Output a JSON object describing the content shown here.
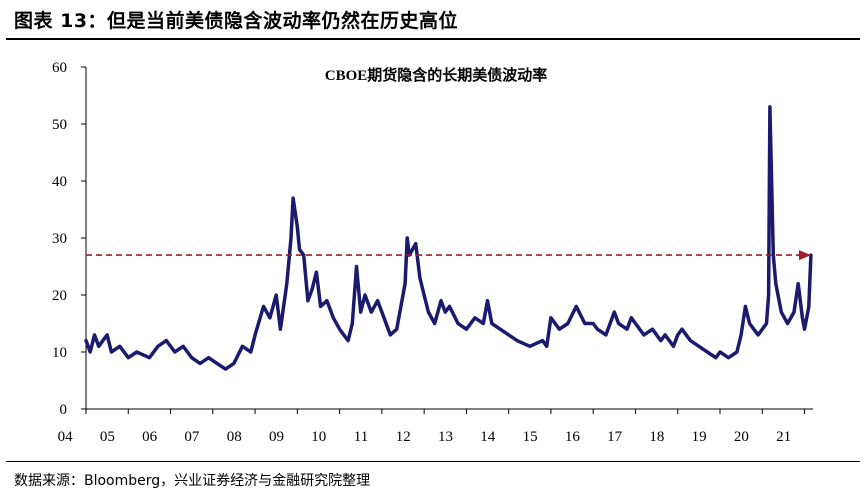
{
  "figure": {
    "title": "图表  13：但是当前美债隐含波动率仍然在历史高位",
    "source": "数据来源：Bloomberg，兴业证券经济与金融研究院整理"
  },
  "colors": {
    "series": "#1a1a6e",
    "reference": "#a01c2c",
    "axis": "#000000"
  },
  "chart_data": {
    "type": "line",
    "title": "CBOE期货隐含的长期美债波动率",
    "xlabel": "",
    "ylabel": "",
    "x_ticks": [
      "04",
      "05",
      "06",
      "07",
      "08",
      "09",
      "10",
      "11",
      "12",
      "13",
      "14",
      "15",
      "16",
      "17",
      "18",
      "19",
      "20",
      "21"
    ],
    "y_ticks": [
      0,
      10,
      20,
      30,
      40,
      50,
      60
    ],
    "xlim": [
      2004.0,
      2021.2
    ],
    "ylim": [
      0,
      60
    ],
    "grid": false,
    "legend": "none",
    "reference_line": {
      "y": 27,
      "style": "dashed",
      "arrow": "right"
    },
    "series": [
      {
        "values": [
          [
            2004.0,
            12
          ],
          [
            2004.1,
            10
          ],
          [
            2004.2,
            13
          ],
          [
            2004.3,
            11
          ],
          [
            2004.4,
            12
          ],
          [
            2004.5,
            13
          ],
          [
            2004.6,
            10
          ],
          [
            2004.8,
            11
          ],
          [
            2005.0,
            9
          ],
          [
            2005.2,
            10
          ],
          [
            2005.5,
            9
          ],
          [
            2005.7,
            11
          ],
          [
            2005.9,
            12
          ],
          [
            2006.1,
            10
          ],
          [
            2006.3,
            11
          ],
          [
            2006.5,
            9
          ],
          [
            2006.7,
            8
          ],
          [
            2006.9,
            9
          ],
          [
            2007.1,
            8
          ],
          [
            2007.3,
            7
          ],
          [
            2007.5,
            8
          ],
          [
            2007.7,
            11
          ],
          [
            2007.9,
            10
          ],
          [
            2008.0,
            13
          ],
          [
            2008.2,
            18
          ],
          [
            2008.35,
            16
          ],
          [
            2008.5,
            20
          ],
          [
            2008.6,
            14
          ],
          [
            2008.75,
            22
          ],
          [
            2008.85,
            30
          ],
          [
            2008.9,
            37
          ],
          [
            2009.0,
            32
          ],
          [
            2009.05,
            28
          ],
          [
            2009.15,
            27
          ],
          [
            2009.25,
            19
          ],
          [
            2009.35,
            21
          ],
          [
            2009.45,
            24
          ],
          [
            2009.55,
            18
          ],
          [
            2009.7,
            19
          ],
          [
            2009.85,
            16
          ],
          [
            2010.0,
            14
          ],
          [
            2010.1,
            13
          ],
          [
            2010.2,
            12
          ],
          [
            2010.3,
            15
          ],
          [
            2010.4,
            25
          ],
          [
            2010.5,
            17
          ],
          [
            2010.6,
            20
          ],
          [
            2010.75,
            17
          ],
          [
            2010.9,
            19
          ],
          [
            2011.0,
            17
          ],
          [
            2011.2,
            13
          ],
          [
            2011.35,
            14
          ],
          [
            2011.45,
            18
          ],
          [
            2011.55,
            22
          ],
          [
            2011.6,
            30
          ],
          [
            2011.65,
            27
          ],
          [
            2011.8,
            29
          ],
          [
            2011.9,
            23
          ],
          [
            2012.0,
            20
          ],
          [
            2012.1,
            17
          ],
          [
            2012.25,
            15
          ],
          [
            2012.4,
            19
          ],
          [
            2012.5,
            17
          ],
          [
            2012.6,
            18
          ],
          [
            2012.8,
            15
          ],
          [
            2013.0,
            14
          ],
          [
            2013.2,
            16
          ],
          [
            2013.4,
            15
          ],
          [
            2013.5,
            19
          ],
          [
            2013.6,
            15
          ],
          [
            2013.8,
            14
          ],
          [
            2014.0,
            13
          ],
          [
            2014.2,
            12
          ],
          [
            2014.5,
            11
          ],
          [
            2014.8,
            12
          ],
          [
            2014.9,
            11
          ],
          [
            2015.0,
            16
          ],
          [
            2015.2,
            14
          ],
          [
            2015.4,
            15
          ],
          [
            2015.6,
            18
          ],
          [
            2015.8,
            15
          ],
          [
            2016.0,
            15
          ],
          [
            2016.1,
            14
          ],
          [
            2016.3,
            13
          ],
          [
            2016.5,
            17
          ],
          [
            2016.6,
            15
          ],
          [
            2016.8,
            14
          ],
          [
            2016.9,
            16
          ],
          [
            2017.0,
            15
          ],
          [
            2017.2,
            13
          ],
          [
            2017.4,
            14
          ],
          [
            2017.6,
            12
          ],
          [
            2017.7,
            13
          ],
          [
            2017.9,
            11
          ],
          [
            2018.0,
            13
          ],
          [
            2018.1,
            14
          ],
          [
            2018.3,
            12
          ],
          [
            2018.5,
            11
          ],
          [
            2018.7,
            10
          ],
          [
            2018.9,
            9
          ],
          [
            2019.0,
            10
          ],
          [
            2019.2,
            9
          ],
          [
            2019.4,
            10
          ],
          [
            2019.5,
            13
          ],
          [
            2019.6,
            18
          ],
          [
            2019.7,
            15
          ],
          [
            2019.8,
            14
          ],
          [
            2019.9,
            13
          ],
          [
            2020.0,
            14
          ],
          [
            2020.1,
            15
          ],
          [
            2020.15,
            20
          ],
          [
            2020.18,
            53
          ],
          [
            2020.22,
            40
          ],
          [
            2020.26,
            27
          ],
          [
            2020.32,
            22
          ],
          [
            2020.45,
            17
          ],
          [
            2020.6,
            15
          ],
          [
            2020.75,
            17
          ],
          [
            2020.85,
            22
          ],
          [
            2020.95,
            16
          ],
          [
            2021.0,
            14
          ],
          [
            2021.05,
            16
          ],
          [
            2021.1,
            18
          ],
          [
            2021.15,
            27
          ]
        ]
      }
    ]
  }
}
